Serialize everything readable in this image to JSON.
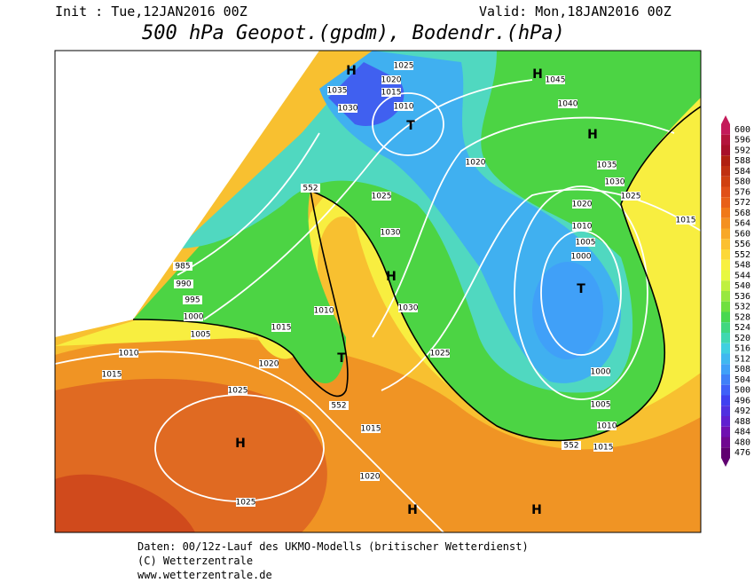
{
  "header": {
    "init": "Init : Tue,12JAN2016 00Z",
    "valid": "Valid: Mon,18JAN2016 00Z",
    "title": "500 hPa Geopot.(gpdm), Bodendr.(hPa)"
  },
  "legend": {
    "labels": [
      "600",
      "596",
      "592",
      "588",
      "584",
      "580",
      "576",
      "572",
      "568",
      "564",
      "560",
      "556",
      "552",
      "548",
      "544",
      "540",
      "536",
      "532",
      "528",
      "524",
      "520",
      "516",
      "512",
      "508",
      "504",
      "500",
      "496",
      "492",
      "488",
      "484",
      "480",
      "476"
    ]
  },
  "map": {
    "labels": [
      "H",
      "1035",
      "1030",
      "1025",
      "1020",
      "1015",
      "1010",
      "T",
      "H",
      "1045",
      "1040",
      "H",
      "1035",
      "1030",
      "1025",
      "1020",
      "1015",
      "1020",
      "552",
      "1025",
      "1030",
      "985",
      "990",
      "995",
      "1000",
      "1005",
      "1010",
      "1015",
      "1015",
      "1020",
      "1010",
      "H",
      "1030",
      "T",
      "552",
      "1025",
      "1010",
      "1005",
      "1000",
      "T",
      "1000",
      "1005",
      "1010",
      "1015",
      "552",
      "1025",
      "H",
      "1015",
      "1020",
      "1025",
      "H",
      "H"
    ]
  },
  "footer": {
    "lines": [
      "Daten: 00/12z-Lauf des UKMO-Modells (britischer Wetterdienst)",
      "(C) Wetterzentrale",
      "www.wetterzentrale.de"
    ]
  }
}
